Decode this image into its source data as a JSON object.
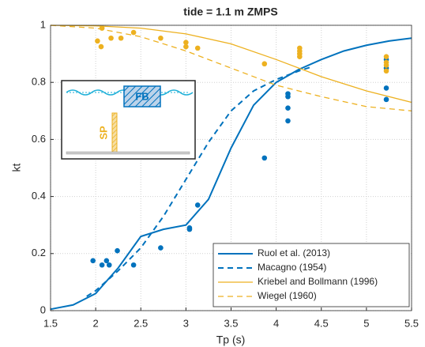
{
  "chart_data": {
    "type": "line",
    "title": "tide = 1.1 m ZMPS",
    "xlabel": "Tp (s)",
    "ylabel": "kt",
    "xlim": [
      1.5,
      5.5
    ],
    "ylim": [
      0,
      1
    ],
    "xticks": [
      1.5,
      2,
      2.5,
      3,
      3.5,
      4,
      4.5,
      5,
      5.5
    ],
    "yticks": [
      0,
      0.2,
      0.4,
      0.6,
      0.8,
      1
    ],
    "grid": true,
    "legend": "lower right",
    "series": [
      {
        "name": "Ruol et al. (2013)",
        "color": "#0072bd",
        "style": "solid",
        "x": [
          1.5,
          1.75,
          2,
          2.25,
          2.5,
          2.75,
          3,
          3.25,
          3.5,
          3.75,
          4,
          4.25,
          4.5,
          4.75,
          5,
          5.25,
          5.5
        ],
        "values": [
          0.005,
          0.02,
          0.06,
          0.15,
          0.26,
          0.285,
          0.3,
          0.39,
          0.57,
          0.72,
          0.8,
          0.845,
          0.88,
          0.91,
          0.93,
          0.945,
          0.955
        ]
      },
      {
        "name": "Macagno (1954)",
        "color": "#0072bd",
        "style": "dashed",
        "x": [
          1.9,
          2,
          2.25,
          2.5,
          2.75,
          3,
          3.25,
          3.5,
          3.75,
          4,
          4.25,
          4.4
        ],
        "values": [
          0.05,
          0.07,
          0.14,
          0.22,
          0.33,
          0.46,
          0.59,
          0.7,
          0.77,
          0.81,
          0.84,
          0.855
        ]
      },
      {
        "name": "Kriebel and Bollmann (1996)",
        "color": "#edb120",
        "style": "solid",
        "x": [
          1.5,
          2,
          2.5,
          3,
          3.5,
          4,
          4.5,
          5,
          5.5
        ],
        "values": [
          1,
          0.998,
          0.99,
          0.97,
          0.935,
          0.88,
          0.82,
          0.77,
          0.73
        ]
      },
      {
        "name": "Wiegel (1960)",
        "color": "#edb120",
        "style": "dashed",
        "x": [
          1.5,
          2,
          2.5,
          3,
          3.5,
          4,
          4.5,
          5,
          5.5
        ],
        "values": [
          1,
          0.99,
          0.96,
          0.91,
          0.85,
          0.79,
          0.75,
          0.715,
          0.7
        ]
      },
      {
        "color": "#0072bd",
        "style": "markers",
        "x": [
          1.97,
          2.07,
          2.12,
          2.15,
          2.24,
          2.42,
          2.72,
          3.04,
          3.04,
          3.13,
          3.87,
          4.13,
          4.13,
          4.13,
          4.13,
          5.22,
          5.22,
          5.22,
          5.22
        ],
        "values": [
          0.175,
          0.16,
          0.175,
          0.16,
          0.21,
          0.16,
          0.22,
          0.29,
          0.285,
          0.37,
          0.535,
          0.75,
          0.76,
          0.71,
          0.665,
          0.88,
          0.85,
          0.78,
          0.74
        ]
      },
      {
        "color": "#edb120",
        "style": "markers",
        "x": [
          2.02,
          2.06,
          2.07,
          2.17,
          2.28,
          2.42,
          2.72,
          3,
          3,
          3.13,
          3.87,
          4.26,
          4.26,
          4.26,
          4.26,
          5.22,
          5.22,
          5.22,
          5.22
        ],
        "values": [
          0.945,
          0.925,
          0.99,
          0.955,
          0.955,
          0.975,
          0.955,
          0.94,
          0.925,
          0.92,
          0.865,
          0.91,
          0.9,
          0.92,
          0.89,
          0.89,
          0.87,
          0.86,
          0.84
        ]
      }
    ]
  },
  "inset": {
    "fb": "FB",
    "sp": "SP"
  }
}
